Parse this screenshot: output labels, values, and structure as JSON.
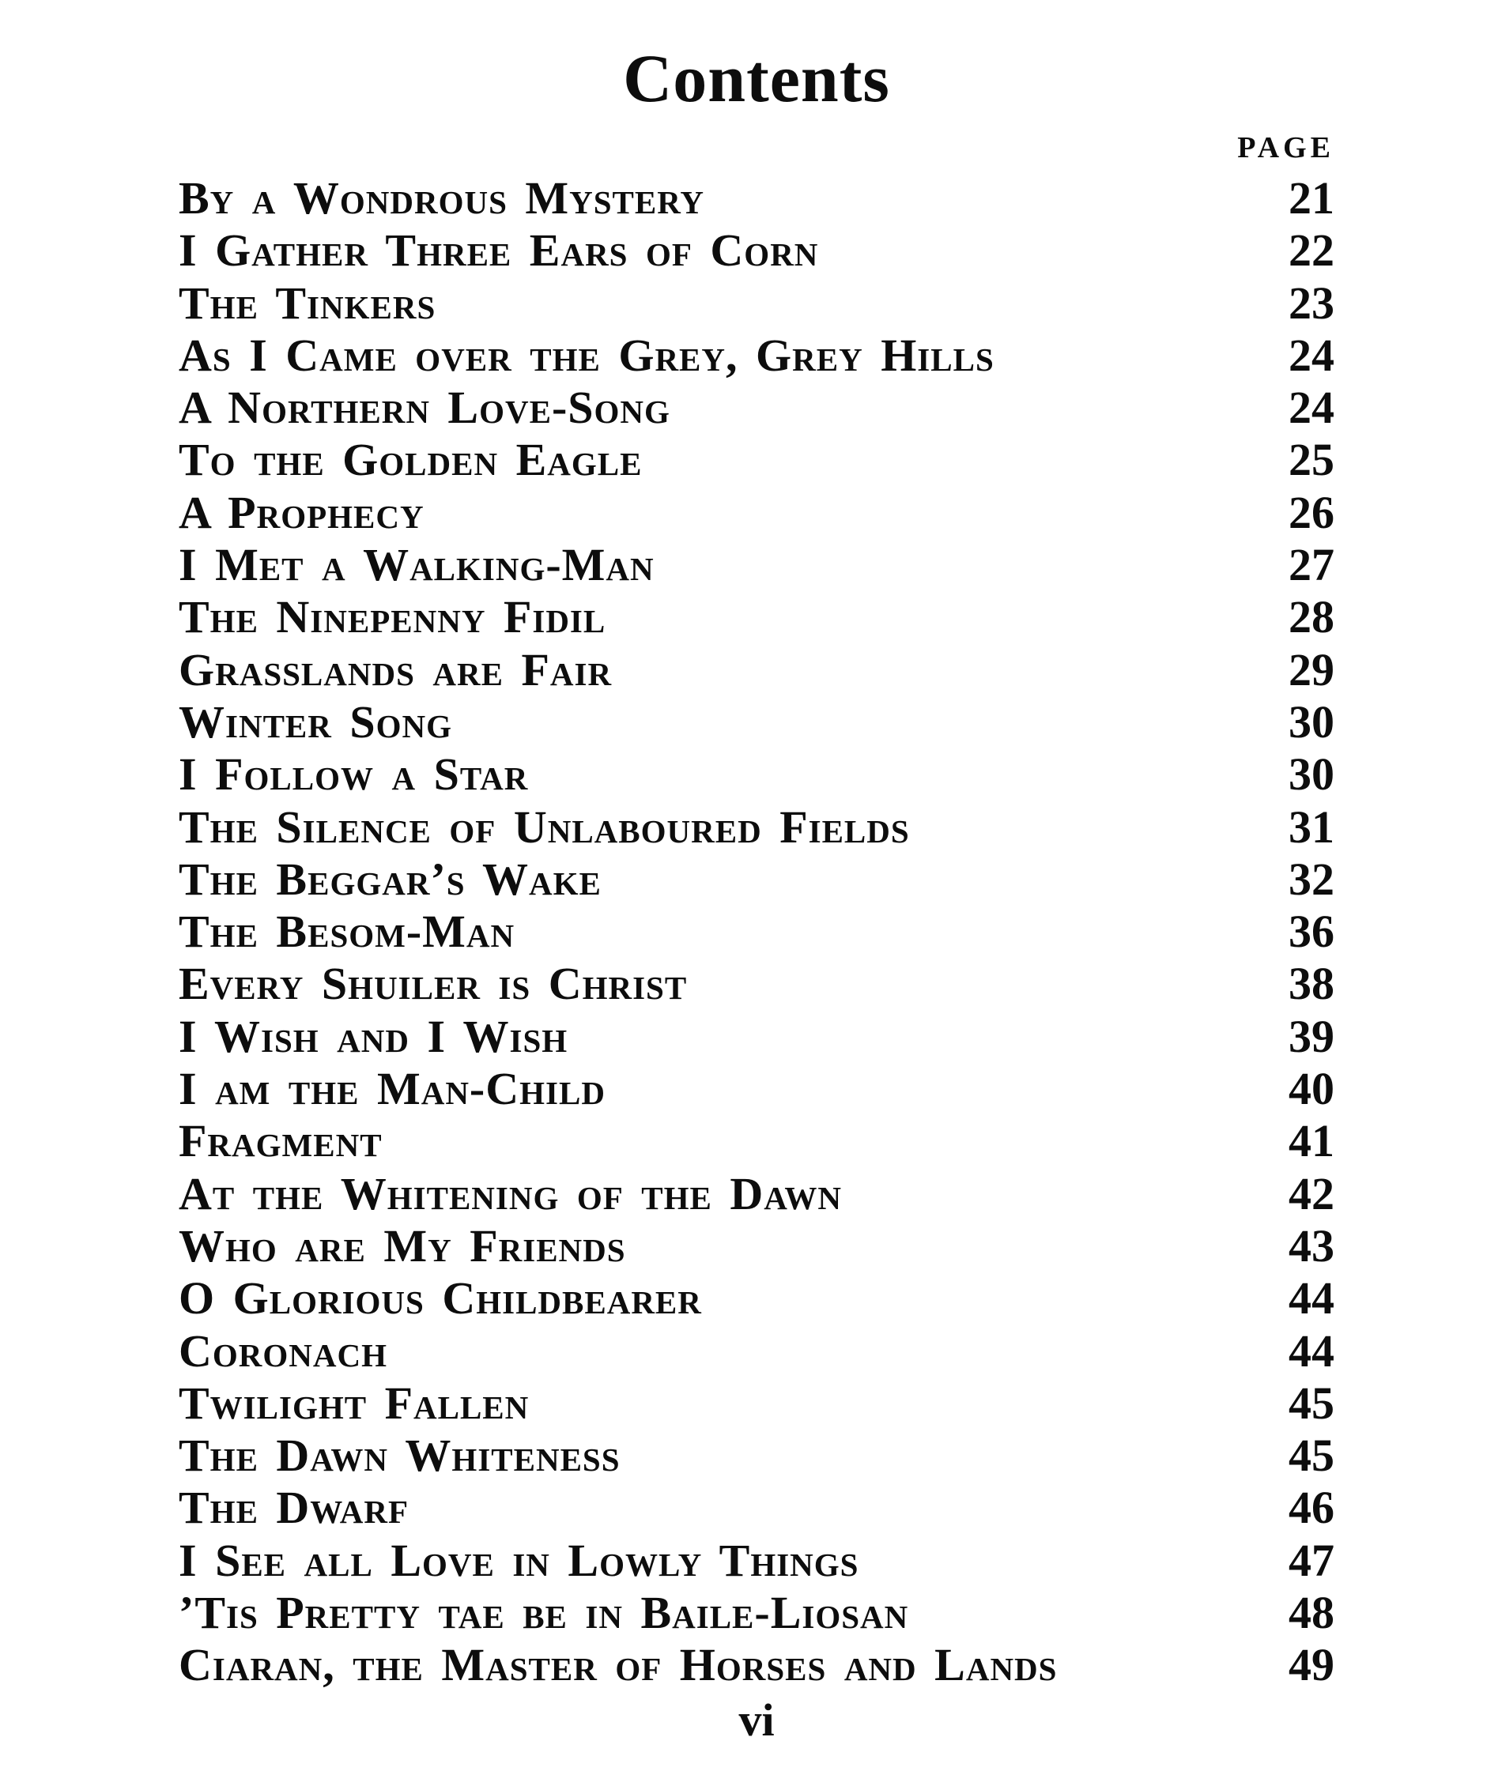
{
  "page": {
    "title": "Contents",
    "column_header": "PAGE",
    "folio": "vi",
    "ink_color": "#0d0d0d",
    "paper_color": "#ffffff",
    "entries": [
      {
        "title": "By a Wondrous Mystery",
        "page": "21"
      },
      {
        "title": "I Gather Three Ears of Corn",
        "page": "22"
      },
      {
        "title": "The Tinkers",
        "page": "23"
      },
      {
        "title": "As I Came over the Grey, Grey Hills",
        "page": "24"
      },
      {
        "title": "A Northern Love-Song",
        "page": "24"
      },
      {
        "title": "To the Golden Eagle",
        "page": "25"
      },
      {
        "title": "A Prophecy",
        "page": "26"
      },
      {
        "title": "I Met a Walking-Man",
        "page": "27"
      },
      {
        "title": "The Ninepenny Fidil",
        "page": "28"
      },
      {
        "title": "Grasslands are Fair",
        "page": "29"
      },
      {
        "title": "Winter Song",
        "page": "30"
      },
      {
        "title": "I Follow a Star",
        "page": "30"
      },
      {
        "title": "The Silence of Unlaboured Fields",
        "page": "31"
      },
      {
        "title": "The Beggar’s Wake",
        "page": "32"
      },
      {
        "title": "The Besom-Man",
        "page": "36"
      },
      {
        "title": "Every Shuiler is Christ",
        "page": "38"
      },
      {
        "title": "I Wish and I Wish",
        "page": "39"
      },
      {
        "title": "I am the Man-Child",
        "page": "40"
      },
      {
        "title": "Fragment",
        "page": "41"
      },
      {
        "title": "At the Whitening of the Dawn",
        "page": "42"
      },
      {
        "title": "Who are My Friends",
        "page": "43"
      },
      {
        "title": "O Glorious Childbearer",
        "page": "44"
      },
      {
        "title": "Coronach",
        "page": "44"
      },
      {
        "title": "Twilight Fallen",
        "page": "45"
      },
      {
        "title": "The Dawn Whiteness",
        "page": "45"
      },
      {
        "title": "The Dwarf",
        "page": "46"
      },
      {
        "title": "I See all Love in Lowly Things",
        "page": "47"
      },
      {
        "title": "’Tis Pretty tae be in Baile-Liosan",
        "page": "48"
      },
      {
        "title": "Ciaran, the Master of Horses and Lands",
        "page": "49"
      }
    ]
  }
}
